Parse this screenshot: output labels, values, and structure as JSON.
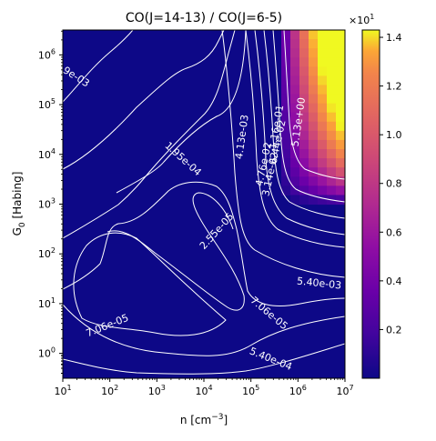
{
  "chart_data": {
    "type": "heatmap",
    "title": "CO(J=14-13) / CO(J=6-5)",
    "xlabel": "n [cm",
    "xlabel_sup": "−3",
    "xlabel_end": "]",
    "ylabel": "G",
    "ylabel_sub": "0",
    "ylabel_end": " [Habing]",
    "x_scale": "log",
    "y_scale": "log",
    "xlim": [
      1,
      7
    ],
    "ylim": [
      -0.5,
      6.5
    ],
    "x_ticks": [
      {
        "value": 1,
        "label": "10",
        "exp": "1"
      },
      {
        "value": 2,
        "label": "10",
        "exp": "2"
      },
      {
        "value": 3,
        "label": "10",
        "exp": "3"
      },
      {
        "value": 4,
        "label": "10",
        "exp": "4"
      },
      {
        "value": 5,
        "label": "10",
        "exp": "5"
      },
      {
        "value": 6,
        "label": "10",
        "exp": "6"
      },
      {
        "value": 7,
        "label": "10",
        "exp": "7"
      }
    ],
    "y_ticks": [
      {
        "value": 0,
        "label": "10",
        "exp": "0"
      },
      {
        "value": 1,
        "label": "10",
        "exp": "1"
      },
      {
        "value": 2,
        "label": "10",
        "exp": "2"
      },
      {
        "value": 3,
        "label": "10",
        "exp": "3"
      },
      {
        "value": 4,
        "label": "10",
        "exp": "4"
      },
      {
        "value": 5,
        "label": "10",
        "exp": "5"
      },
      {
        "value": 6,
        "label": "10",
        "exp": "6"
      }
    ],
    "colormap": "plasma",
    "colorbar": {
      "range": [
        0.0,
        1.43
      ],
      "ticks": [
        0.2,
        0.4,
        0.6,
        0.8,
        1.0,
        1.2,
        1.4
      ],
      "tick_labels": [
        "0.2",
        "0.4",
        "0.6",
        "0.8",
        "1.0",
        "1.2",
        "1.4"
      ],
      "multiplier": "×10",
      "multiplier_exp": "1"
    },
    "grid": false,
    "contour_color": "#ffffff",
    "contour_labels": [
      {
        "text": "1.95e-04",
        "x": 3.55,
        "y": 3.9,
        "angle": -42
      },
      {
        "text": "2.55e-05",
        "x": 4.28,
        "y": 2.45,
        "angle": 48
      },
      {
        "text": "7.06e-05",
        "x": 1.95,
        "y": 0.55,
        "angle": 22
      },
      {
        "text": "7.06e-05",
        "x": 5.38,
        "y": 0.8,
        "angle": -40
      },
      {
        "text": "5.40e-04",
        "x": 5.42,
        "y": -0.12,
        "angle": -22
      },
      {
        "text": "5.40e-03",
        "x": 6.45,
        "y": 1.4,
        "angle": -6
      },
      {
        "text": "9e-03",
        "x": 1.28,
        "y": 5.55,
        "angle": -32
      },
      {
        "text": "4.13e-03",
        "x": 4.82,
        "y": 4.35,
        "angle": 82
      },
      {
        "text": "6.44e-02",
        "x": 5.58,
        "y": 4.25,
        "angle": 78
      },
      {
        "text": "4.76e-02",
        "x": 5.28,
        "y": 3.8,
        "angle": 78
      },
      {
        "text": "3.14e-02",
        "x": 5.42,
        "y": 3.6,
        "angle": 78
      },
      {
        "text": "1.16e-01",
        "x": 5.55,
        "y": 4.55,
        "angle": 80
      },
      {
        "text": "5.13e+00",
        "x": 6.02,
        "y": 4.65,
        "angle": 82
      }
    ]
  }
}
